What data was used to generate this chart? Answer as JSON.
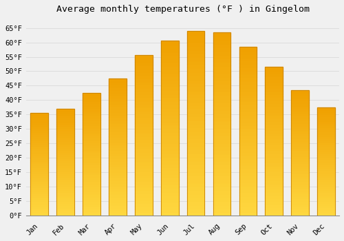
{
  "title": "Average monthly temperatures (°F ) in Gingelom",
  "months": [
    "Jan",
    "Feb",
    "Mar",
    "Apr",
    "May",
    "Jun",
    "Jul",
    "Aug",
    "Sep",
    "Oct",
    "Nov",
    "Dec"
  ],
  "values": [
    35.5,
    37.0,
    42.5,
    47.5,
    55.5,
    60.5,
    64.0,
    63.5,
    58.5,
    51.5,
    43.5,
    37.5
  ],
  "bar_color_outer": "#F5A800",
  "bar_color_inner": "#FFD040",
  "bar_edge_color": "#C88000",
  "background_color": "#F0F0F0",
  "grid_color": "#DDDDDD",
  "title_fontsize": 9.5,
  "tick_fontsize": 7.5,
  "ylim": [
    0,
    68
  ],
  "yticks": [
    0,
    5,
    10,
    15,
    20,
    25,
    30,
    35,
    40,
    45,
    50,
    55,
    60,
    65
  ]
}
